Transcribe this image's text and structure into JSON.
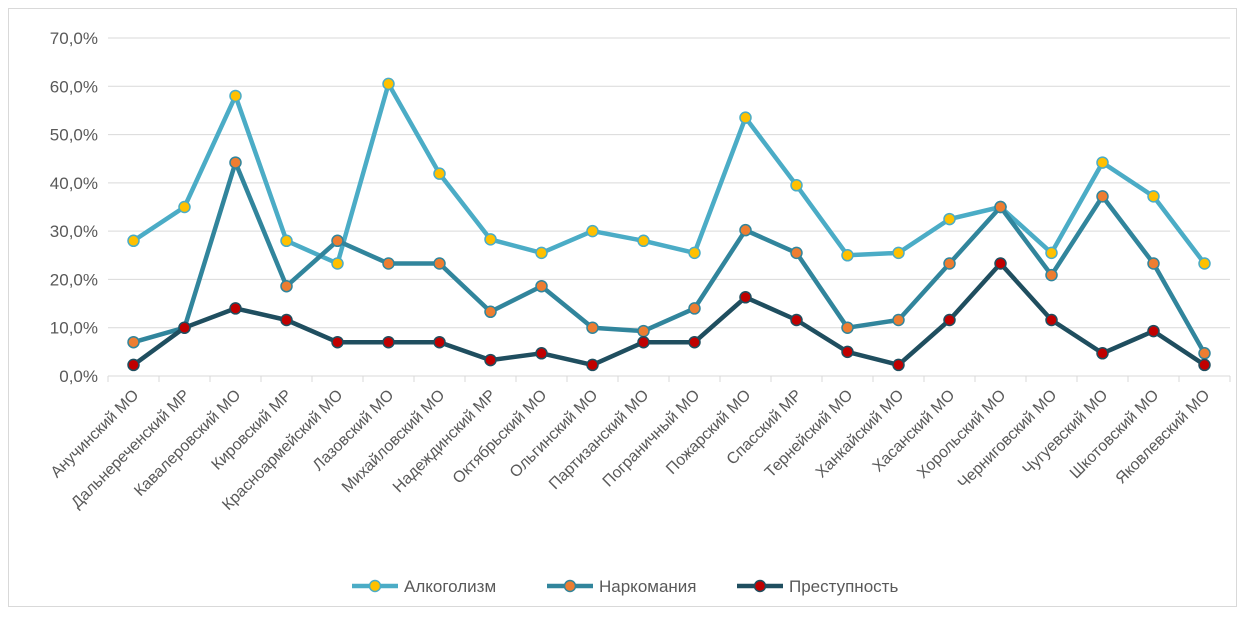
{
  "chart_data": {
    "type": "line",
    "title": "",
    "xlabel": "",
    "ylabel": "",
    "ylim": [
      0,
      70
    ],
    "yticks": [
      "0,0%",
      "10,0%",
      "20,0%",
      "30,0%",
      "40,0%",
      "50,0%",
      "60,0%",
      "70,0%"
    ],
    "grid": true,
    "legend_position": "bottom",
    "categories": [
      "Анучинский МО",
      "Дальнереченский МР",
      "Кавалеровский МО",
      "Кировский МР",
      "Красноармейский МО",
      "Лазовский МО",
      "Михайловский МО",
      "Надеждинский МР",
      "Октябрьский МО",
      "Ольгинский МО",
      "Партизанский МО",
      "Пограничный МО",
      "Пожарский МО",
      "Спасский МР",
      "Тернейский МО",
      "Ханкайский МО",
      "Хасанский МО",
      "Хорольский МО",
      "Черниговский МО",
      "Чугуевский МО",
      "Шкотовский МО",
      "Яковлевский МО"
    ],
    "series": [
      {
        "name": "Алкоголизм",
        "line_color": "#4bacc6",
        "marker_color": "#ffc000",
        "values": [
          28.0,
          35.0,
          58.0,
          28.0,
          23.3,
          60.5,
          41.9,
          28.3,
          25.5,
          30.0,
          28.0,
          25.5,
          53.5,
          39.5,
          25.0,
          25.5,
          32.5,
          35.0,
          25.5,
          44.2,
          37.2,
          23.3
        ]
      },
      {
        "name": "Наркомания",
        "line_color": "#31859c",
        "marker_color": "#ed7d31",
        "values": [
          7.0,
          10.0,
          44.2,
          18.6,
          28.0,
          23.3,
          23.3,
          13.3,
          18.6,
          10.0,
          9.3,
          14.0,
          30.2,
          25.5,
          10.0,
          11.6,
          23.3,
          35.0,
          20.9,
          37.2,
          23.3,
          4.7
        ]
      },
      {
        "name": "Преступность",
        "line_color": "#1f4e5f",
        "marker_color": "#c00000",
        "values": [
          2.3,
          10.0,
          14.0,
          11.6,
          7.0,
          7.0,
          7.0,
          3.3,
          4.7,
          2.3,
          7.0,
          7.0,
          16.3,
          11.6,
          5.0,
          2.3,
          11.6,
          23.3,
          11.6,
          4.7,
          9.3,
          2.3
        ]
      }
    ]
  }
}
